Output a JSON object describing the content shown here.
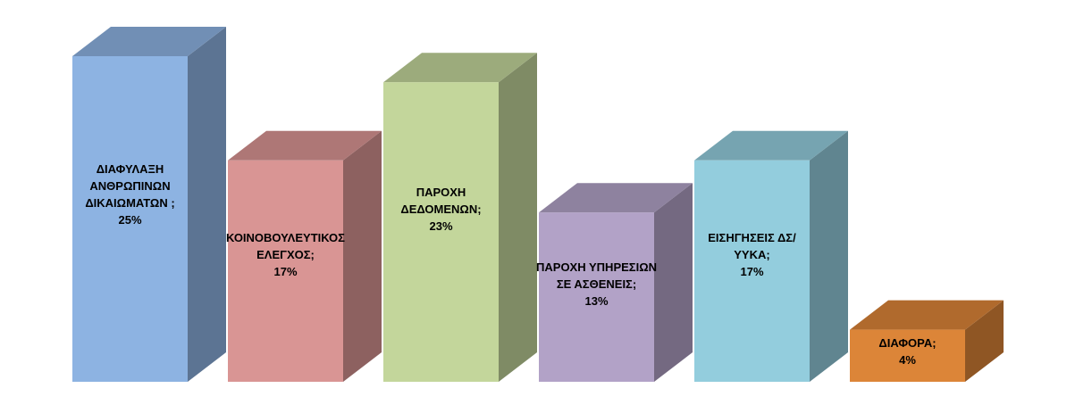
{
  "chart_data": {
    "type": "bar3d",
    "categories": [
      "ΔΙΑΦΥΛΑΞΗ ΑΝΘΡΩΠΙΝΩΝ ΔΙΚΑΙΩΜΑΤΩΝ ;",
      "ΚΟΙΝΟΒΟΥΛΕΥΤΙΚΟΣ ΕΛΕΓΧΟΣ;",
      "ΠΑΡΟΧΗ ΔΕΔΟΜΕΝΩΝ;",
      "ΠΑΡΟΧΗ ΥΠΗΡΕΣΙΩΝ ΣΕ ΑΣΘΕΝΕΙΣ;",
      "ΕΙΣΗΓΗΣΕΙΣ ΔΣ/ΥΥΚΑ;",
      "ΔΙΑΦΟΡΑ;"
    ],
    "values": [
      25,
      17,
      23,
      13,
      17,
      4
    ],
    "value_labels": [
      "25%",
      "17%",
      "23%",
      "13%",
      "17%",
      "4%"
    ],
    "colors": [
      "#8db3e2",
      "#d99594",
      "#c3d69b",
      "#b2a2c7",
      "#93cddd",
      "#dc8538"
    ]
  }
}
